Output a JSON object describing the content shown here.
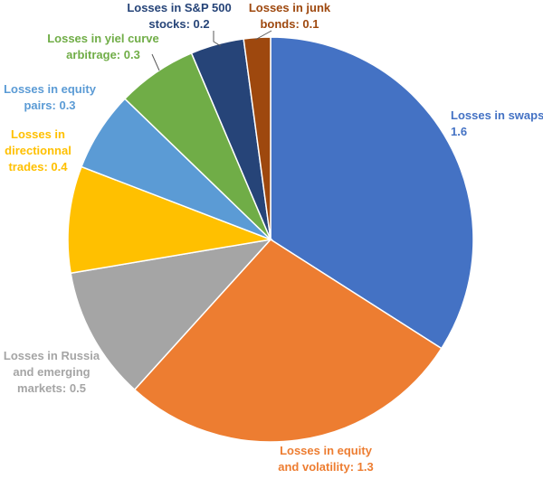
{
  "chart_data": {
    "type": "pie",
    "title": "",
    "legend": "none",
    "slices": [
      {
        "label_lines": [
          "Losses in swaps:",
          "1.6"
        ],
        "label": "Losses in swaps: 1.6",
        "value": 1.6,
        "color": "#4472C4"
      },
      {
        "label_lines": [
          "Losses in equity",
          "and volatility: 1.3"
        ],
        "label": "Losses in equity and volatility: 1.3",
        "value": 1.3,
        "color": "#ED7D31"
      },
      {
        "label_lines": [
          "Losses in Russia",
          "and emerging",
          "markets: 0.5"
        ],
        "label": "Losses in Russia and emerging markets: 0.5",
        "value": 0.5,
        "color": "#A5A5A5"
      },
      {
        "label_lines": [
          "Losses in",
          "directionnal",
          "trades: 0.4"
        ],
        "label": "Losses in directionnal trades: 0.4",
        "value": 0.4,
        "color": "#FFC000"
      },
      {
        "label_lines": [
          "Losses in equity",
          "pairs: 0.3"
        ],
        "label": "Losses in equity pairs: 0.3",
        "value": 0.3,
        "color": "#5B9BD5"
      },
      {
        "label_lines": [
          "Losses in yiel curve",
          "arbitrage: 0.3"
        ],
        "label": "Losses in yiel curve arbitrage: 0.3",
        "value": 0.3,
        "color": "#70AD47"
      },
      {
        "label_lines": [
          "Losses in S&P 500",
          "stocks: 0.2"
        ],
        "label": "Losses in S&P 500 stocks: 0.2",
        "value": 0.2,
        "color": "#264478"
      },
      {
        "label_lines": [
          "Losses in junk",
          "bonds: 0.1"
        ],
        "label": "Losses in junk bonds: 0.1",
        "value": 0.1,
        "color": "#9E480E"
      }
    ],
    "label_colors": [
      "#4472C4",
      "#ED7D31",
      "#A5A5A5",
      "#FFC000",
      "#5B9BD5",
      "#70AD47",
      "#264478",
      "#9E480E"
    ]
  }
}
